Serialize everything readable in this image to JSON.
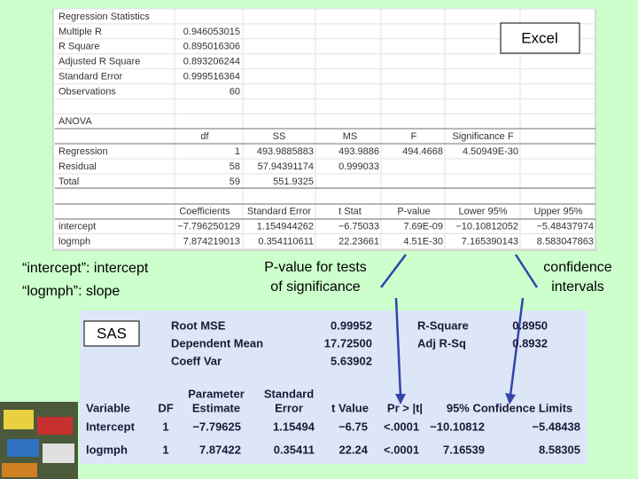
{
  "excel": {
    "label": "Excel",
    "regression_statistics": {
      "title": "Regression Statistics",
      "rows": [
        [
          "Multiple R",
          "0.946053015"
        ],
        [
          "R Square",
          "0.895016306"
        ],
        [
          "Adjusted R Square",
          "0.893206244"
        ],
        [
          "Standard Error",
          "0.999516364"
        ],
        [
          "Observations",
          "60"
        ]
      ]
    },
    "anova": {
      "title": "ANOVA",
      "header": [
        "df",
        "SS",
        "MS",
        "F",
        "Significance F"
      ],
      "rows": [
        [
          "Regression",
          "1",
          "493.9885883",
          "493.9886",
          "494.4668",
          "4.50949E-30"
        ],
        [
          "Residual",
          "58",
          "57.94391174",
          "0.999033"
        ],
        [
          "Total",
          "59",
          "551.9325"
        ]
      ]
    },
    "coefficients": {
      "header": [
        "Coefficients",
        "Standard Error",
        "t Stat",
        "P-value",
        "Lower 95%",
        "Upper 95%"
      ],
      "rows": [
        [
          "intercept",
          "−7.796250129",
          "1.154944262",
          "−6.75033",
          "7.69E-09",
          "−10.10812052",
          "−5.48437974"
        ],
        [
          "logmph",
          "7.874219013",
          "0.354110611",
          "22.23661",
          "4.51E-30",
          "7.165390143",
          "8.583047863"
        ]
      ]
    }
  },
  "annotations": {
    "coefficient_note": [
      "“intercept”: intercept",
      "“logmph”: slope"
    ],
    "pvalue_note": [
      "P-value for tests",
      "of significance"
    ],
    "interval_note": [
      "confidence",
      "intervals"
    ]
  },
  "sas": {
    "label": "SAS",
    "fit_stats": [
      [
        "Root MSE",
        "0.99952",
        "R-Square",
        "0.8950"
      ],
      [
        "Dependent Mean",
        "17.72500",
        "Adj R-Sq",
        "0.8932"
      ],
      [
        "Coeff Var",
        "5.63902"
      ]
    ],
    "header": [
      "Variable",
      "DF",
      [
        "Parameter",
        "Estimate"
      ],
      [
        "Standard",
        "Error"
      ],
      "t Value",
      "Pr > |t|",
      "95% Confidence Limits"
    ],
    "rows": [
      [
        "Intercept",
        "1",
        "−7.79625",
        "1.15494",
        "−6.75",
        "<.0001",
        "−10.10812",
        "−5.48438"
      ],
      [
        "logmph",
        "1",
        "7.87422",
        "0.35411",
        "22.24",
        "<.0001",
        "7.16539",
        "8.58305"
      ]
    ]
  }
}
